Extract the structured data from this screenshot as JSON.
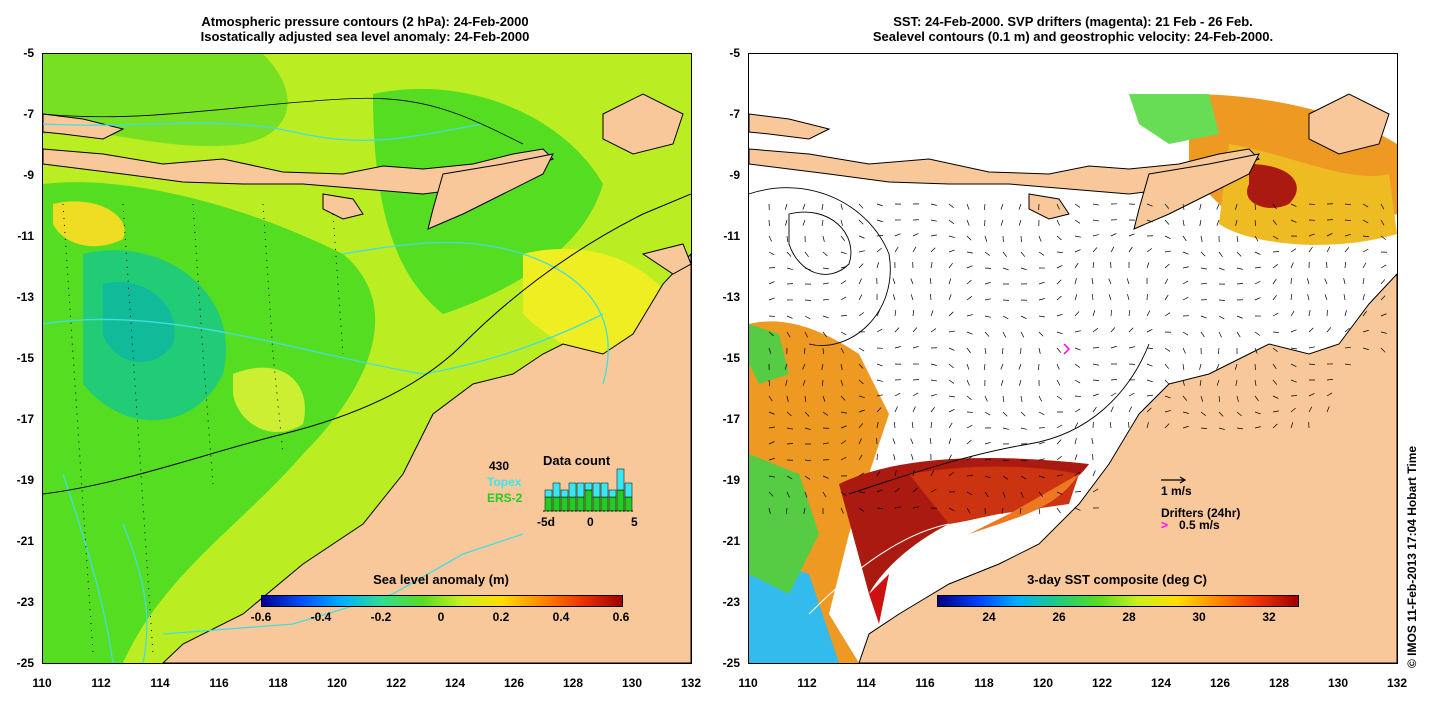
{
  "left_panel": {
    "title_line1": "Atmospheric pressure contours (2 hPa): 24-Feb-2000",
    "title_line2": "Isostatically adjusted sea level anomaly: 24-Feb-2000",
    "colorbar": {
      "label": "Sea level anomaly (m)",
      "ticks": [
        "-0.6",
        "-0.4",
        "-0.2",
        "0",
        "0.2",
        "0.4",
        "0.6"
      ]
    },
    "data_count": {
      "title": "Data count",
      "number": "430",
      "topex_label": "Topex",
      "ers2_label": "ERS-2",
      "axis_ticks": [
        "-5d",
        "0",
        "5"
      ],
      "topex_counts": [
        3,
        4,
        3,
        4,
        4,
        3,
        4,
        4,
        3,
        5,
        4
      ],
      "ers2_counts": [
        2,
        2,
        2,
        2,
        2,
        3,
        2,
        2,
        2,
        3,
        2
      ],
      "topex_color": "#3ce6f0",
      "ers2_color": "#22cc22"
    }
  },
  "right_panel": {
    "title_line1": "SST: 24-Feb-2000. SVP drifters (magenta): 21 Feb - 26 Feb.",
    "title_line2": "Sealevel contours (0.1 m) and geostrophic velocity: 24-Feb-2000.",
    "colorbar": {
      "label": "3-day SST composite (deg C)",
      "ticks": [
        "24",
        "26",
        "28",
        "30",
        "32"
      ]
    },
    "velocity_scale": "1 m/s",
    "drifters_label": "Drifters (24hr)",
    "drifters_scale": "0.5 m/s",
    "drifter_color": "#ff00ff"
  },
  "axes": {
    "y_ticks": [
      "-5",
      "-7",
      "-9",
      "-11",
      "-13",
      "-15",
      "-17",
      "-19",
      "-21",
      "-23",
      "-25"
    ],
    "x_ticks": [
      "110",
      "112",
      "114",
      "116",
      "118",
      "120",
      "122",
      "124",
      "126",
      "128",
      "130",
      "132"
    ]
  },
  "credit": "© IMOS 11-Feb-2013 17:04 Hobart Time",
  "colors": {
    "land": "#f9c89a",
    "ocean_green": "#55dd22",
    "ocean_lime": "#bbee22",
    "ocean_yellow": "#eeee22",
    "ocean_teal": "#22cc77",
    "sst_orange": "#ee9922",
    "sst_red": "#aa1a10",
    "contour_cyan": "#44dddd"
  }
}
